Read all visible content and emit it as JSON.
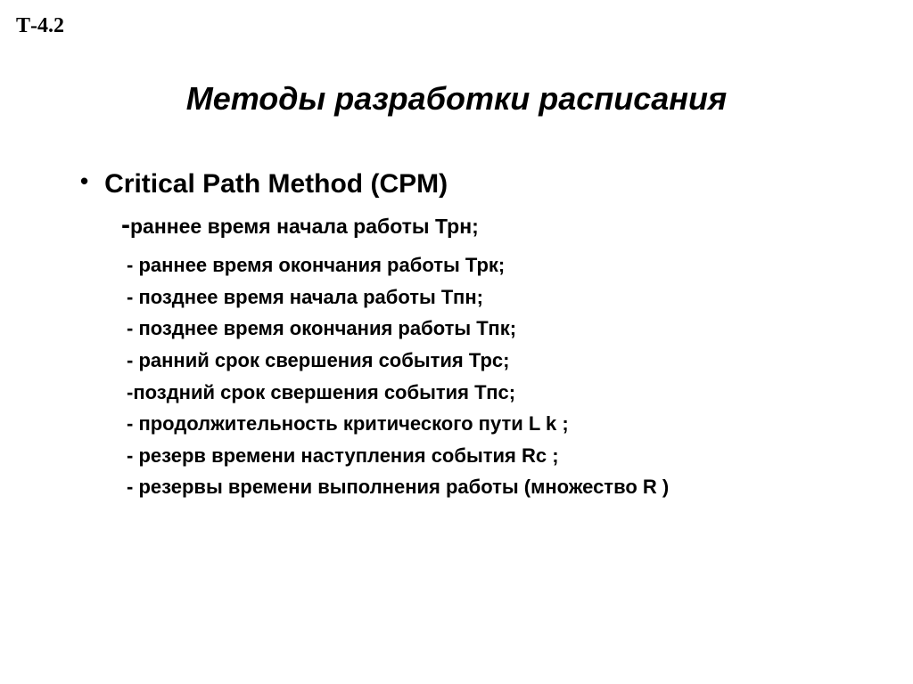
{
  "corner_code": "Т-4.2",
  "title": "Методы разработки расписания",
  "bullet": {
    "heading": "Critical Path Method  (CPM)",
    "sub_first_dash": "-",
    "sub_first_rest": "раннее время начала работы Трн;",
    "lines": [
      "- раннее время окончания работы Трк;",
      "- позднее время начала работы Тпн;",
      "- позднее время окончания работы Тпк;",
      "- ранний срок свершения события Трс;",
      "-поздний срок свершения события Тпс;",
      "- продолжительность критического пути  L k   ;",
      "- резерв времени наступления события  Rc    ;",
      "- резервы времени выполнения работы  (множество  R   )"
    ]
  },
  "style": {
    "background_color": "#ffffff",
    "text_color": "#000000",
    "corner_code": {
      "font_family": "Times New Roman",
      "font_size_pt": 18,
      "font_weight": "bold"
    },
    "title": {
      "font_family": "Arial",
      "font_style": "italic",
      "font_weight": "bold",
      "font_size_pt": 27
    },
    "bullet_heading": {
      "font_family": "Arial",
      "font_weight": "bold",
      "font_size_pt": 22
    },
    "sub_first": {
      "dash_font_size_pt": 22,
      "rest_font_size_pt": 17,
      "font_weight": "bold"
    },
    "sublines": {
      "font_family": "Arial",
      "font_weight": "bold",
      "font_size_pt": 16,
      "line_height": 1.62
    },
    "bullet_marker": "•"
  }
}
